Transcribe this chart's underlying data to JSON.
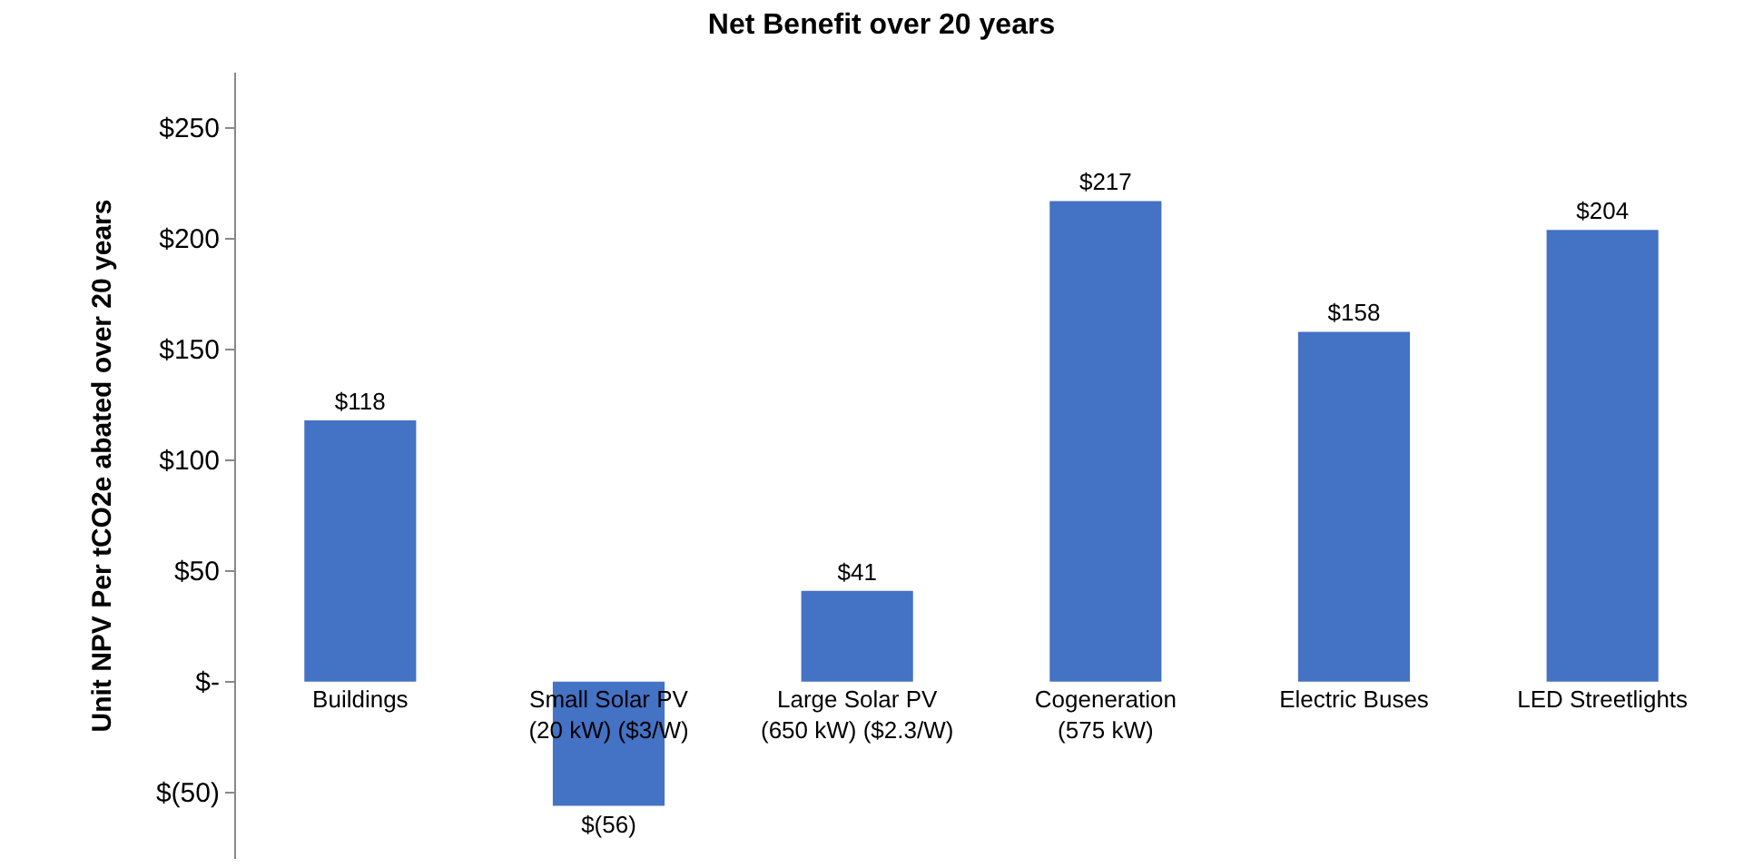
{
  "chart_data": {
    "type": "bar",
    "title": "Net Benefit over 20 years",
    "ylabel": "Unit NPV Per tCO2e abated over 20 years",
    "categories": [
      "Buildings",
      "Small Solar PV (20 kW) ($3/W)",
      "Large Solar PV (650 kW) ($2.3/W)",
      "Cogeneration (575 kW)",
      "Electric Buses",
      "LED Streetlights"
    ],
    "values": [
      118,
      -56,
      41,
      217,
      158,
      204
    ],
    "value_labels": [
      "$118",
      "$(56)",
      "$41",
      "$217",
      "$158",
      "$204"
    ],
    "color": "#4472c4",
    "ylim": [
      -80,
      275
    ],
    "yticks": [
      {
        "value": -50,
        "label": "$(50)"
      },
      {
        "value": 0,
        "label": "$-"
      },
      {
        "value": 50,
        "label": "$50"
      },
      {
        "value": 100,
        "label": "$100"
      },
      {
        "value": 150,
        "label": "$150"
      },
      {
        "value": 200,
        "label": "$200"
      },
      {
        "value": 250,
        "label": "$250"
      }
    ],
    "legend": false
  }
}
